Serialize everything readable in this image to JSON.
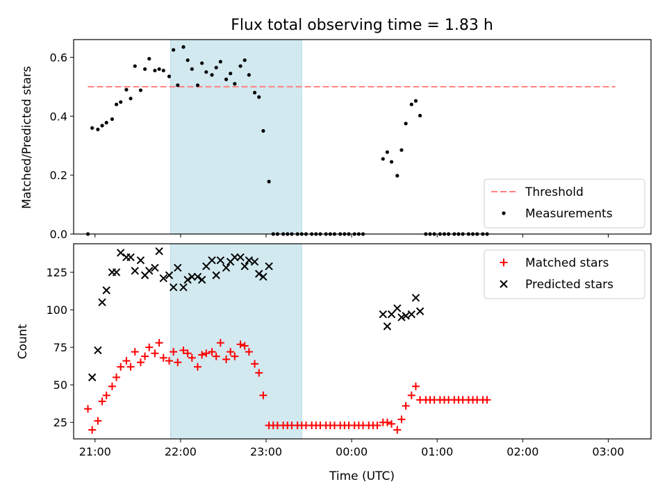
{
  "figure": {
    "title": "Flux total observing time = 1.83 h",
    "xlabel": "Time (UTC)"
  },
  "chart_data": [
    {
      "type": "scatter",
      "id": "top",
      "ylabel": "Matched/Predicted stars",
      "xlim": [
        "20:45",
        "03:30"
      ],
      "ylim": [
        0,
        0.66
      ],
      "yticks": [
        0.0,
        0.2,
        0.4,
        0.6
      ],
      "ytick_labels": [
        "0.0",
        "0.2",
        "0.4",
        "0.6"
      ],
      "highlight_span": [
        "21:53",
        "23:25"
      ],
      "highlight_color": "#d2e9f0",
      "legend_position": "lower-right",
      "threshold": {
        "name": "Threshold",
        "value": 0.5,
        "x_range": [
          "20:55",
          "03:05"
        ],
        "color": "#ff7f7f",
        "style": "dashed"
      },
      "series": [
        {
          "name": "Measurements",
          "color": "#000000",
          "marker": "dot",
          "points": [
            [
              "20:55",
              0.0
            ],
            [
              "20:58",
              0.36
            ],
            [
              "21:02",
              0.355
            ],
            [
              "21:05",
              0.368
            ],
            [
              "21:08",
              0.378
            ],
            [
              "21:12",
              0.39
            ],
            [
              "21:15",
              0.44
            ],
            [
              "21:18",
              0.448
            ],
            [
              "21:22",
              0.49
            ],
            [
              "21:25",
              0.46
            ],
            [
              "21:28",
              0.57
            ],
            [
              "21:32",
              0.488
            ],
            [
              "21:35",
              0.56
            ],
            [
              "21:38",
              0.595
            ],
            [
              "21:42",
              0.555
            ],
            [
              "21:45",
              0.56
            ],
            [
              "21:48",
              0.555
            ],
            [
              "21:52",
              0.535
            ],
            [
              "21:55",
              0.625
            ],
            [
              "21:58",
              0.505
            ],
            [
              "22:02",
              0.635
            ],
            [
              "22:05",
              0.59
            ],
            [
              "22:08",
              0.56
            ],
            [
              "22:12",
              0.505
            ],
            [
              "22:15",
              0.58
            ],
            [
              "22:18",
              0.55
            ],
            [
              "22:22",
              0.54
            ],
            [
              "22:25",
              0.565
            ],
            [
              "22:28",
              0.585
            ],
            [
              "22:32",
              0.525
            ],
            [
              "22:35",
              0.545
            ],
            [
              "22:38",
              0.51
            ],
            [
              "22:42",
              0.57
            ],
            [
              "22:45",
              0.59
            ],
            [
              "22:48",
              0.54
            ],
            [
              "22:52",
              0.48
            ],
            [
              "22:55",
              0.465
            ],
            [
              "22:58",
              0.35
            ],
            [
              "23:02",
              0.178
            ],
            [
              "23:05",
              0.0
            ],
            [
              "23:08",
              0.0
            ],
            [
              "23:12",
              0.0
            ],
            [
              "23:15",
              0.0
            ],
            [
              "23:18",
              0.0
            ],
            [
              "23:22",
              0.0
            ],
            [
              "23:25",
              0.0
            ],
            [
              "23:28",
              0.0
            ],
            [
              "23:32",
              0.0
            ],
            [
              "23:35",
              0.0
            ],
            [
              "23:38",
              0.0
            ],
            [
              "23:42",
              0.0
            ],
            [
              "23:45",
              0.0
            ],
            [
              "23:48",
              0.0
            ],
            [
              "23:52",
              0.0
            ],
            [
              "23:55",
              0.0
            ],
            [
              "23:58",
              0.0
            ],
            [
              "00:02",
              0.0
            ],
            [
              "00:05",
              0.0
            ],
            [
              "00:08",
              0.0
            ],
            [
              "00:22",
              0.255
            ],
            [
              "00:25",
              0.278
            ],
            [
              "00:28",
              0.245
            ],
            [
              "00:32",
              0.198
            ],
            [
              "00:35",
              0.285
            ],
            [
              "00:38",
              0.375
            ],
            [
              "00:42",
              0.44
            ],
            [
              "00:45",
              0.452
            ],
            [
              "00:48",
              0.402
            ],
            [
              "00:52",
              0.0
            ],
            [
              "00:55",
              0.0
            ],
            [
              "00:58",
              0.0
            ],
            [
              "01:02",
              0.0
            ],
            [
              "01:05",
              0.0
            ],
            [
              "01:08",
              0.0
            ],
            [
              "01:12",
              0.0
            ],
            [
              "01:15",
              0.0
            ],
            [
              "01:18",
              0.0
            ],
            [
              "01:22",
              0.0
            ],
            [
              "01:25",
              0.0
            ],
            [
              "01:28",
              0.0
            ],
            [
              "01:32",
              0.0
            ],
            [
              "01:35",
              0.0
            ]
          ]
        }
      ],
      "legend": [
        {
          "label": "Threshold",
          "kind": "dashed-line",
          "color": "#ff7f7f"
        },
        {
          "label": "Measurements",
          "kind": "dot",
          "color": "#000000"
        }
      ]
    },
    {
      "type": "scatter",
      "id": "bottom",
      "ylabel": "Count",
      "xlim": [
        "20:45",
        "03:30"
      ],
      "ylim": [
        14,
        144
      ],
      "yticks": [
        25,
        50,
        75,
        100,
        125
      ],
      "ytick_labels": [
        "25",
        "50",
        "75",
        "100",
        "125"
      ],
      "xticks": [
        "21:00",
        "22:00",
        "23:00",
        "00:00",
        "01:00",
        "02:00",
        "03:00"
      ],
      "xtick_labels": [
        "21:00",
        "22:00",
        "23:00",
        "00:00",
        "01:00",
        "02:00",
        "03:00"
      ],
      "highlight_span": [
        "21:53",
        "23:25"
      ],
      "highlight_color": "#d2e9f0",
      "legend_position": "upper-right",
      "series": [
        {
          "name": "Matched stars",
          "color": "#ff0000",
          "marker": "plus",
          "points": [
            [
              "20:55",
              34
            ],
            [
              "20:58",
              20
            ],
            [
              "21:02",
              26
            ],
            [
              "21:05",
              39
            ],
            [
              "21:08",
              43
            ],
            [
              "21:12",
              49
            ],
            [
              "21:15",
              55
            ],
            [
              "21:18",
              62
            ],
            [
              "21:22",
              66
            ],
            [
              "21:25",
              62
            ],
            [
              "21:28",
              72
            ],
            [
              "21:32",
              65
            ],
            [
              "21:35",
              69
            ],
            [
              "21:38",
              75
            ],
            [
              "21:42",
              71
            ],
            [
              "21:45",
              78
            ],
            [
              "21:48",
              68
            ],
            [
              "21:52",
              66
            ],
            [
              "21:55",
              72
            ],
            [
              "21:58",
              65
            ],
            [
              "22:02",
              73
            ],
            [
              "22:05",
              71
            ],
            [
              "22:08",
              68
            ],
            [
              "22:12",
              62
            ],
            [
              "22:15",
              70
            ],
            [
              "22:18",
              71
            ],
            [
              "22:22",
              72
            ],
            [
              "22:25",
              69
            ],
            [
              "22:28",
              78
            ],
            [
              "22:32",
              67
            ],
            [
              "22:35",
              72
            ],
            [
              "22:38",
              69
            ],
            [
              "22:42",
              77
            ],
            [
              "22:45",
              76
            ],
            [
              "22:48",
              72
            ],
            [
              "22:52",
              64
            ],
            [
              "22:55",
              58
            ],
            [
              "22:58",
              43
            ],
            [
              "23:02",
              23
            ],
            [
              "23:05",
              23
            ],
            [
              "23:08",
              23
            ],
            [
              "23:12",
              23
            ],
            [
              "23:15",
              23
            ],
            [
              "23:18",
              23
            ],
            [
              "23:22",
              23
            ],
            [
              "23:25",
              23
            ],
            [
              "23:28",
              23
            ],
            [
              "23:32",
              23
            ],
            [
              "23:35",
              23
            ],
            [
              "23:38",
              23
            ],
            [
              "23:42",
              23
            ],
            [
              "23:45",
              23
            ],
            [
              "23:48",
              23
            ],
            [
              "23:52",
              23
            ],
            [
              "23:55",
              23
            ],
            [
              "23:58",
              23
            ],
            [
              "00:02",
              23
            ],
            [
              "00:05",
              23
            ],
            [
              "00:08",
              23
            ],
            [
              "00:12",
              23
            ],
            [
              "00:15",
              23
            ],
            [
              "00:18",
              23
            ],
            [
              "00:22",
              25
            ],
            [
              "00:25",
              25
            ],
            [
              "00:28",
              24
            ],
            [
              "00:32",
              20
            ],
            [
              "00:35",
              27
            ],
            [
              "00:38",
              36
            ],
            [
              "00:42",
              43
            ],
            [
              "00:45",
              49
            ],
            [
              "00:48",
              40
            ],
            [
              "00:52",
              40
            ],
            [
              "00:55",
              40
            ],
            [
              "00:58",
              40
            ],
            [
              "01:02",
              40
            ],
            [
              "01:05",
              40
            ],
            [
              "01:08",
              40
            ],
            [
              "01:12",
              40
            ],
            [
              "01:15",
              40
            ],
            [
              "01:18",
              40
            ],
            [
              "01:22",
              40
            ],
            [
              "01:25",
              40
            ],
            [
              "01:28",
              40
            ],
            [
              "01:32",
              40
            ],
            [
              "01:35",
              40
            ]
          ]
        },
        {
          "name": "Predicted stars",
          "color": "#000000",
          "marker": "x",
          "points": [
            [
              "20:58",
              55
            ],
            [
              "21:02",
              73
            ],
            [
              "21:05",
              105
            ],
            [
              "21:08",
              113
            ],
            [
              "21:12",
              125
            ],
            [
              "21:15",
              125
            ],
            [
              "21:18",
              138
            ],
            [
              "21:22",
              135
            ],
            [
              "21:25",
              135
            ],
            [
              "21:28",
              126
            ],
            [
              "21:32",
              133
            ],
            [
              "21:35",
              123
            ],
            [
              "21:38",
              126
            ],
            [
              "21:42",
              128
            ],
            [
              "21:45",
              139
            ],
            [
              "21:48",
              121
            ],
            [
              "21:52",
              123
            ],
            [
              "21:55",
              115
            ],
            [
              "21:58",
              128
            ],
            [
              "22:02",
              115
            ],
            [
              "22:05",
              120
            ],
            [
              "22:08",
              122
            ],
            [
              "22:12",
              122
            ],
            [
              "22:15",
              120
            ],
            [
              "22:18",
              129
            ],
            [
              "22:22",
              133
            ],
            [
              "22:25",
              123
            ],
            [
              "22:28",
              133
            ],
            [
              "22:32",
              128
            ],
            [
              "22:35",
              132
            ],
            [
              "22:38",
              135
            ],
            [
              "22:42",
              135
            ],
            [
              "22:45",
              129
            ],
            [
              "22:48",
              133
            ],
            [
              "22:52",
              132
            ],
            [
              "22:55",
              124
            ],
            [
              "22:58",
              122
            ],
            [
              "23:02",
              129
            ],
            [
              "00:22",
              97
            ],
            [
              "00:25",
              89
            ],
            [
              "00:28",
              97
            ],
            [
              "00:32",
              101
            ],
            [
              "00:35",
              95
            ],
            [
              "00:38",
              96
            ],
            [
              "00:42",
              97
            ],
            [
              "00:45",
              108
            ],
            [
              "00:48",
              99
            ]
          ]
        }
      ],
      "legend": [
        {
          "label": "Matched stars",
          "kind": "plus",
          "color": "#ff0000"
        },
        {
          "label": "Predicted stars",
          "kind": "x",
          "color": "#000000"
        }
      ]
    }
  ]
}
